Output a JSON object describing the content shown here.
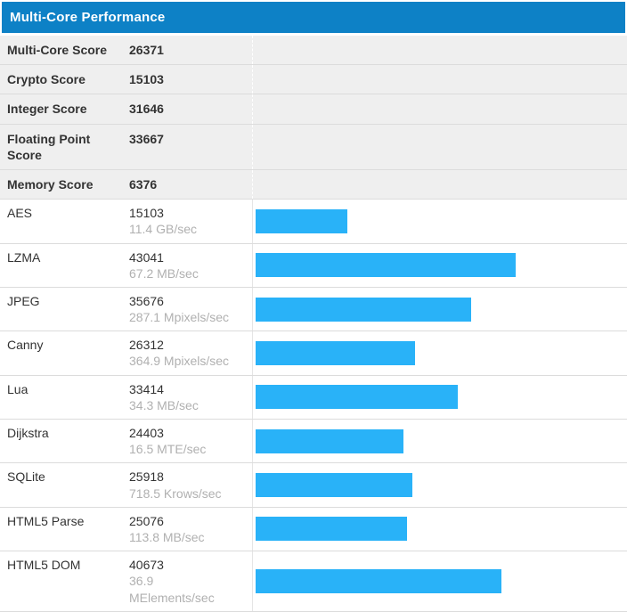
{
  "header": {
    "title": "Multi-Core Performance"
  },
  "summary": {
    "rows": [
      {
        "label": "Multi-Core Score",
        "value": "26371"
      },
      {
        "label": "Crypto Score",
        "value": "15103"
      },
      {
        "label": "Integer Score",
        "value": "31646"
      },
      {
        "label": "Floating Point Score",
        "value": "33667"
      },
      {
        "label": "Memory Score",
        "value": "6376"
      }
    ]
  },
  "benchmarks": [
    {
      "name": "AES",
      "score": 15103,
      "rate": "11.4 GB/sec"
    },
    {
      "name": "LZMA",
      "score": 43041,
      "rate": "67.2 MB/sec"
    },
    {
      "name": "JPEG",
      "score": 35676,
      "rate": "287.1 Mpixels/sec"
    },
    {
      "name": "Canny",
      "score": 26312,
      "rate": "364.9 Mpixels/sec"
    },
    {
      "name": "Lua",
      "score": 33414,
      "rate": "34.3 MB/sec"
    },
    {
      "name": "Dijkstra",
      "score": 24403,
      "rate": "16.5 MTE/sec"
    },
    {
      "name": "SQLite",
      "score": 25918,
      "rate": "718.5 Krows/sec"
    },
    {
      "name": "HTML5 Parse",
      "score": 25076,
      "rate": "113.8 MB/sec"
    },
    {
      "name": "HTML5 DOM",
      "score": 40673,
      "rate": "36.9 MElements/sec"
    }
  ],
  "chart_data": {
    "type": "bar",
    "orientation": "horizontal",
    "title": "Multi-Core Performance",
    "categories": [
      "AES",
      "LZMA",
      "JPEG",
      "Canny",
      "Lua",
      "Dijkstra",
      "SQLite",
      "HTML5 Parse",
      "HTML5 DOM"
    ],
    "values": [
      15103,
      43041,
      35676,
      26312,
      33414,
      24403,
      25918,
      25076,
      40673
    ],
    "value_labels": [
      "11.4 GB/sec",
      "67.2 MB/sec",
      "287.1 Mpixels/sec",
      "364.9 Mpixels/sec",
      "34.3 MB/sec",
      "16.5 MTE/sec",
      "718.5 Krows/sec",
      "113.8 MB/sec",
      "36.9 MElements/sec"
    ],
    "summary_scores": {
      "Multi-Core Score": 26371,
      "Crypto Score": 15103,
      "Integer Score": 31646,
      "Floating Point Score": 33667,
      "Memory Score": 6376
    },
    "xlim": [
      0,
      43041
    ],
    "grid": false,
    "legend": false,
    "bar_color": "#29b2f8"
  },
  "colors": {
    "header_bg": "#0d81c6",
    "header_text": "#ffffff",
    "bar": "#29b2f8",
    "summary_row_bg": "#efefef",
    "row_border": "#dcdcdc",
    "text": "#333333",
    "muted_text": "#b0b0b0"
  }
}
